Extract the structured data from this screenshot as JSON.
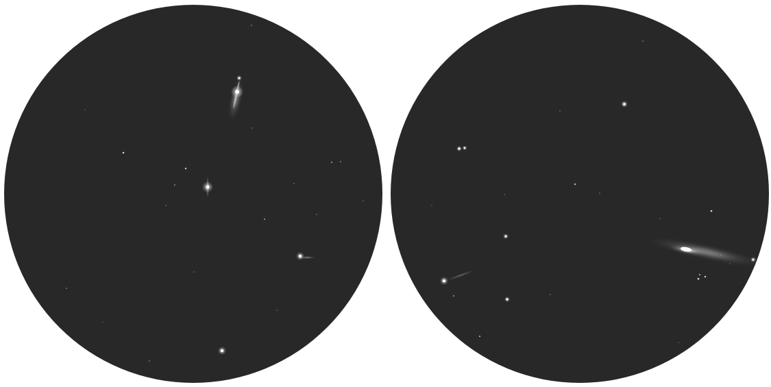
{
  "colors": {
    "background": "#ffffff",
    "sky": "#282828",
    "star": "#ffffff",
    "glow": "#dcdcdc"
  },
  "views": [
    {
      "name": "left-sky-view"
    },
    {
      "name": "right-sky-view"
    }
  ]
}
